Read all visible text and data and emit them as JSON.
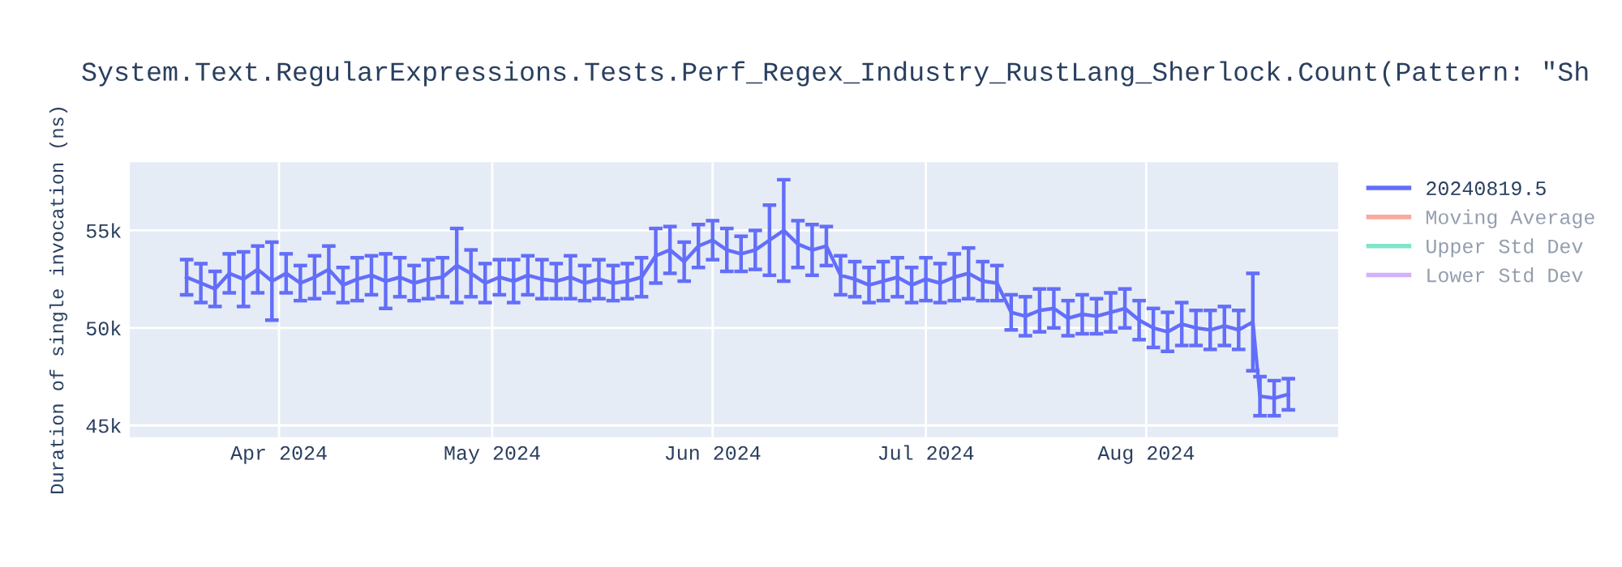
{
  "chart_data": {
    "type": "line",
    "title": "System.Text.RegularExpressions.Tests.Perf_Regex_Industry_RustLang_Sherlock.Count(Pattern: \"Sh",
    "ylabel": "Duration of single invocation (ns)",
    "x": [
      "2024-03-19",
      "2024-03-21",
      "2024-03-23",
      "2024-03-25",
      "2024-03-27",
      "2024-03-29",
      "2024-03-31",
      "2024-04-02",
      "2024-04-04",
      "2024-04-06",
      "2024-04-08",
      "2024-04-10",
      "2024-04-12",
      "2024-04-14",
      "2024-04-16",
      "2024-04-18",
      "2024-04-20",
      "2024-04-22",
      "2024-04-24",
      "2024-04-26",
      "2024-04-28",
      "2024-04-30",
      "2024-05-02",
      "2024-05-04",
      "2024-05-06",
      "2024-05-08",
      "2024-05-10",
      "2024-05-12",
      "2024-05-14",
      "2024-05-16",
      "2024-05-18",
      "2024-05-20",
      "2024-05-22",
      "2024-05-24",
      "2024-05-26",
      "2024-05-28",
      "2024-05-30",
      "2024-06-01",
      "2024-06-03",
      "2024-06-05",
      "2024-06-07",
      "2024-06-09",
      "2024-06-11",
      "2024-06-13",
      "2024-06-15",
      "2024-06-17",
      "2024-06-19",
      "2024-06-21",
      "2024-06-23",
      "2024-06-25",
      "2024-06-27",
      "2024-06-29",
      "2024-07-01",
      "2024-07-03",
      "2024-07-05",
      "2024-07-07",
      "2024-07-09",
      "2024-07-11",
      "2024-07-13",
      "2024-07-15",
      "2024-07-17",
      "2024-07-19",
      "2024-07-21",
      "2024-07-23",
      "2024-07-25",
      "2024-07-27",
      "2024-07-29",
      "2024-07-31",
      "2024-08-02",
      "2024-08-04",
      "2024-08-06",
      "2024-08-08",
      "2024-08-10",
      "2024-08-12",
      "2024-08-14",
      "2024-08-16",
      "2024-08-17",
      "2024-08-19",
      "2024-08-21"
    ],
    "series": [
      {
        "name": "20240819.5",
        "color": "#636efa",
        "values": [
          52600,
          52300,
          52000,
          52800,
          52500,
          53000,
          52400,
          52800,
          52300,
          52600,
          53000,
          52200,
          52500,
          52700,
          52400,
          52600,
          52300,
          52500,
          52600,
          53200,
          52800,
          52300,
          52600,
          52400,
          52700,
          52500,
          52400,
          52600,
          52300,
          52500,
          52300,
          52400,
          52600,
          53700,
          54000,
          53400,
          54200,
          54500,
          54000,
          53800,
          54000,
          54500,
          55000,
          54300,
          54000,
          54200,
          52700,
          52500,
          52200,
          52400,
          52600,
          52200,
          52500,
          52300,
          52600,
          52800,
          52400,
          52300,
          50800,
          50600,
          50900,
          51000,
          50500,
          50700,
          50600,
          50800,
          51000,
          50400,
          50000,
          49800,
          50200,
          50000,
          49900,
          50100,
          49900,
          50300,
          46500,
          46400,
          46600
        ],
        "errors": [
          900,
          1000,
          900,
          1000,
          1400,
          1200,
          2000,
          1000,
          900,
          1100,
          1200,
          900,
          1100,
          1000,
          1400,
          1000,
          900,
          1000,
          1000,
          1900,
          1200,
          1000,
          900,
          1100,
          1000,
          1000,
          900,
          1100,
          900,
          1000,
          900,
          900,
          1000,
          1400,
          1200,
          1000,
          1100,
          1000,
          1100,
          900,
          1000,
          1800,
          2600,
          1200,
          1300,
          1000,
          1000,
          900,
          900,
          1000,
          1000,
          900,
          1100,
          1000,
          1200,
          1300,
          1000,
          900,
          900,
          1000,
          1100,
          1000,
          900,
          1000,
          900,
          1000,
          1000,
          1000,
          1000,
          1000,
          1100,
          900,
          1000,
          1000,
          1000,
          2500,
          1000,
          900,
          800
        ]
      },
      {
        "name": "Moving Average",
        "color": "#ef553b",
        "values": [
          null,
          null,
          null,
          null,
          null,
          null,
          null,
          null,
          null,
          null,
          null,
          null,
          null,
          null,
          null,
          null,
          null,
          null,
          null,
          null,
          null,
          null,
          null,
          null,
          null,
          null,
          null,
          null,
          null,
          null,
          null,
          null,
          null,
          null,
          null,
          null,
          null,
          null,
          null,
          null,
          null,
          null,
          null,
          null,
          null,
          null,
          null,
          null,
          null,
          null,
          null,
          null,
          null,
          null,
          null,
          null,
          null,
          null,
          null,
          null,
          null,
          null,
          null,
          null,
          null,
          null,
          null,
          null,
          null,
          null,
          null,
          null,
          null,
          null,
          null,
          null,
          null,
          null,
          null
        ]
      },
      {
        "name": "Upper Std Dev",
        "color": "#00cc96",
        "values": [
          null,
          null,
          null,
          null,
          null,
          null,
          null,
          null,
          null,
          null,
          null,
          null,
          null,
          null,
          null,
          null,
          null,
          null,
          null,
          null,
          null,
          null,
          null,
          null,
          null,
          null,
          null,
          null,
          null,
          null,
          null,
          null,
          null,
          null,
          null,
          null,
          null,
          null,
          null,
          null,
          null,
          null,
          null,
          null,
          null,
          null,
          null,
          null,
          null,
          null,
          null,
          null,
          null,
          null,
          null,
          null,
          null,
          null,
          null,
          null,
          null,
          null,
          null,
          null,
          null,
          null,
          null,
          null,
          null,
          null,
          null,
          null,
          null,
          null,
          null,
          null,
          null,
          null,
          null
        ]
      },
      {
        "name": "Lower Std Dev",
        "color": "#ab63fa",
        "values": [
          null,
          null,
          null,
          null,
          null,
          null,
          null,
          null,
          null,
          null,
          null,
          null,
          null,
          null,
          null,
          null,
          null,
          null,
          null,
          null,
          null,
          null,
          null,
          null,
          null,
          null,
          null,
          null,
          null,
          null,
          null,
          null,
          null,
          null,
          null,
          null,
          null,
          null,
          null,
          null,
          null,
          null,
          null,
          null,
          null,
          null,
          null,
          null,
          null,
          null,
          null,
          null,
          null,
          null,
          null,
          null,
          null,
          null,
          null,
          null,
          null,
          null,
          null,
          null,
          null,
          null,
          null,
          null,
          null,
          null,
          null,
          null,
          null,
          null,
          null,
          null,
          null,
          null,
          null
        ]
      }
    ],
    "xlim": [
      "2024-03-11",
      "2024-08-28"
    ],
    "xticks": [
      {
        "value": "2024-04-01",
        "label": "Apr 2024"
      },
      {
        "value": "2024-05-01",
        "label": "May 2024"
      },
      {
        "value": "2024-06-01",
        "label": "Jun 2024"
      },
      {
        "value": "2024-07-01",
        "label": "Jul 2024"
      },
      {
        "value": "2024-08-01",
        "label": "Aug 2024"
      }
    ],
    "ylim": [
      44400,
      58500
    ],
    "yticks": [
      {
        "value": 45000,
        "label": "45k"
      },
      {
        "value": 50000,
        "label": "50k"
      },
      {
        "value": 55000,
        "label": "55k"
      }
    ],
    "grid": true,
    "legend": "right",
    "marker": "none",
    "line_style": "solid"
  }
}
